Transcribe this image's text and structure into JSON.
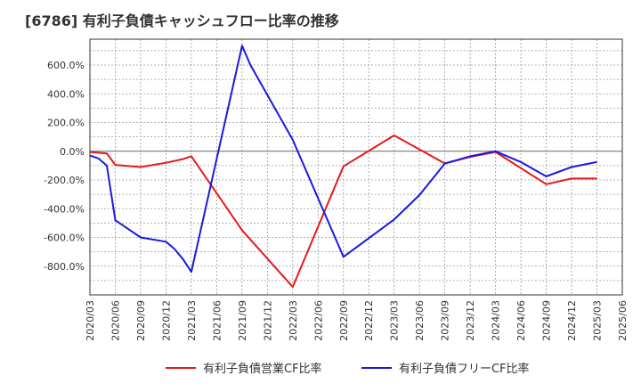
{
  "title": "[6786]  有利子負債キャッシュフロー比率の推移",
  "chart_data": {
    "type": "line",
    "title": "[6786]  有利子負債キャッシュフロー比率の推移",
    "xlabel": "",
    "ylabel": "",
    "ylim": [
      -1000,
      780
    ],
    "yticks": [
      -800,
      -600,
      -400,
      -200,
      0,
      200,
      400,
      600
    ],
    "ytick_labels": [
      "-800.0%",
      "-600.0%",
      "-400.0%",
      "-200.0%",
      "0.0%",
      "200.0%",
      "400.0%",
      "600.0%"
    ],
    "xticks": [
      "2020/03",
      "2020/06",
      "2020/09",
      "2020/12",
      "2021/03",
      "2021/06",
      "2021/09",
      "2021/12",
      "2022/03",
      "2022/06",
      "2022/09",
      "2022/12",
      "2023/03",
      "2023/06",
      "2023/09",
      "2023/12",
      "2024/03",
      "2024/06",
      "2024/09",
      "2024/12",
      "2025/03",
      "2025/06"
    ],
    "grid": true,
    "legend_position": "bottom",
    "series": [
      {
        "name": "有利子負債営業CF比率",
        "color": "#e31a1c",
        "points": [
          [
            "2020/03",
            -5
          ],
          [
            "2020/05",
            -15
          ],
          [
            "2020/06",
            -95
          ],
          [
            "2020/09",
            -110
          ],
          [
            "2020/12",
            -80
          ],
          [
            "2021/02",
            -55
          ],
          [
            "2021/03",
            -35
          ],
          [
            "2021/09",
            -550
          ],
          [
            "2022/03",
            -945
          ],
          [
            "2022/09",
            -105
          ],
          [
            "2023/03",
            110
          ],
          [
            "2023/09",
            -85
          ],
          [
            "2023/12",
            -40
          ],
          [
            "2024/03",
            -5
          ],
          [
            "2024/09",
            -230
          ],
          [
            "2024/12",
            -190
          ],
          [
            "2025/03",
            -190
          ]
        ]
      },
      {
        "name": "有利子負債フリーCF比率",
        "color": "#1a1adc",
        "points": [
          [
            "2020/03",
            -30
          ],
          [
            "2020/04",
            -50
          ],
          [
            "2020/05",
            -100
          ],
          [
            "2020/06",
            -480
          ],
          [
            "2020/09",
            -600
          ],
          [
            "2020/12",
            -630
          ],
          [
            "2021/01",
            -680
          ],
          [
            "2021/02",
            -750
          ],
          [
            "2021/03",
            -840
          ],
          [
            "2021/09",
            735
          ],
          [
            "2021/10",
            600
          ],
          [
            "2022/03",
            80
          ],
          [
            "2022/09",
            -735
          ],
          [
            "2023/03",
            -475
          ],
          [
            "2023/06",
            -305
          ],
          [
            "2023/09",
            -85
          ],
          [
            "2023/12",
            -35
          ],
          [
            "2024/03",
            0
          ],
          [
            "2024/06",
            -75
          ],
          [
            "2024/09",
            -175
          ],
          [
            "2024/12",
            -110
          ],
          [
            "2025/03",
            -75
          ]
        ]
      }
    ]
  }
}
